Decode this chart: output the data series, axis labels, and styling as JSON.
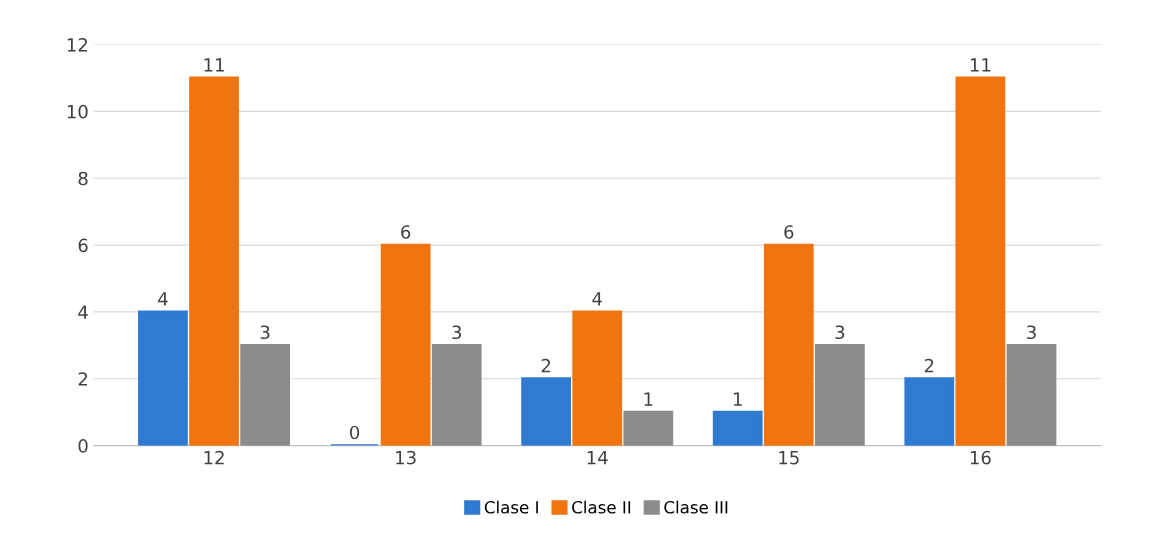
{
  "chart_data": {
    "type": "bar",
    "categories": [
      "12",
      "13",
      "14",
      "15",
      "16"
    ],
    "series": [
      {
        "name": "Clase I",
        "color": "#2e7bd1",
        "values": [
          4,
          0,
          2,
          1,
          2
        ]
      },
      {
        "name": "Clase II",
        "color": "#f0740f",
        "values": [
          11,
          6,
          4,
          6,
          11
        ]
      },
      {
        "name": "Clase III",
        "color": "#8c8c8c",
        "values": [
          3,
          3,
          1,
          3,
          3
        ]
      }
    ],
    "ylim": [
      0,
      12
    ],
    "yticks": [
      0,
      2,
      4,
      6,
      8,
      10,
      12
    ],
    "grid": "y",
    "legend": "bottom",
    "data_labels": true
  }
}
